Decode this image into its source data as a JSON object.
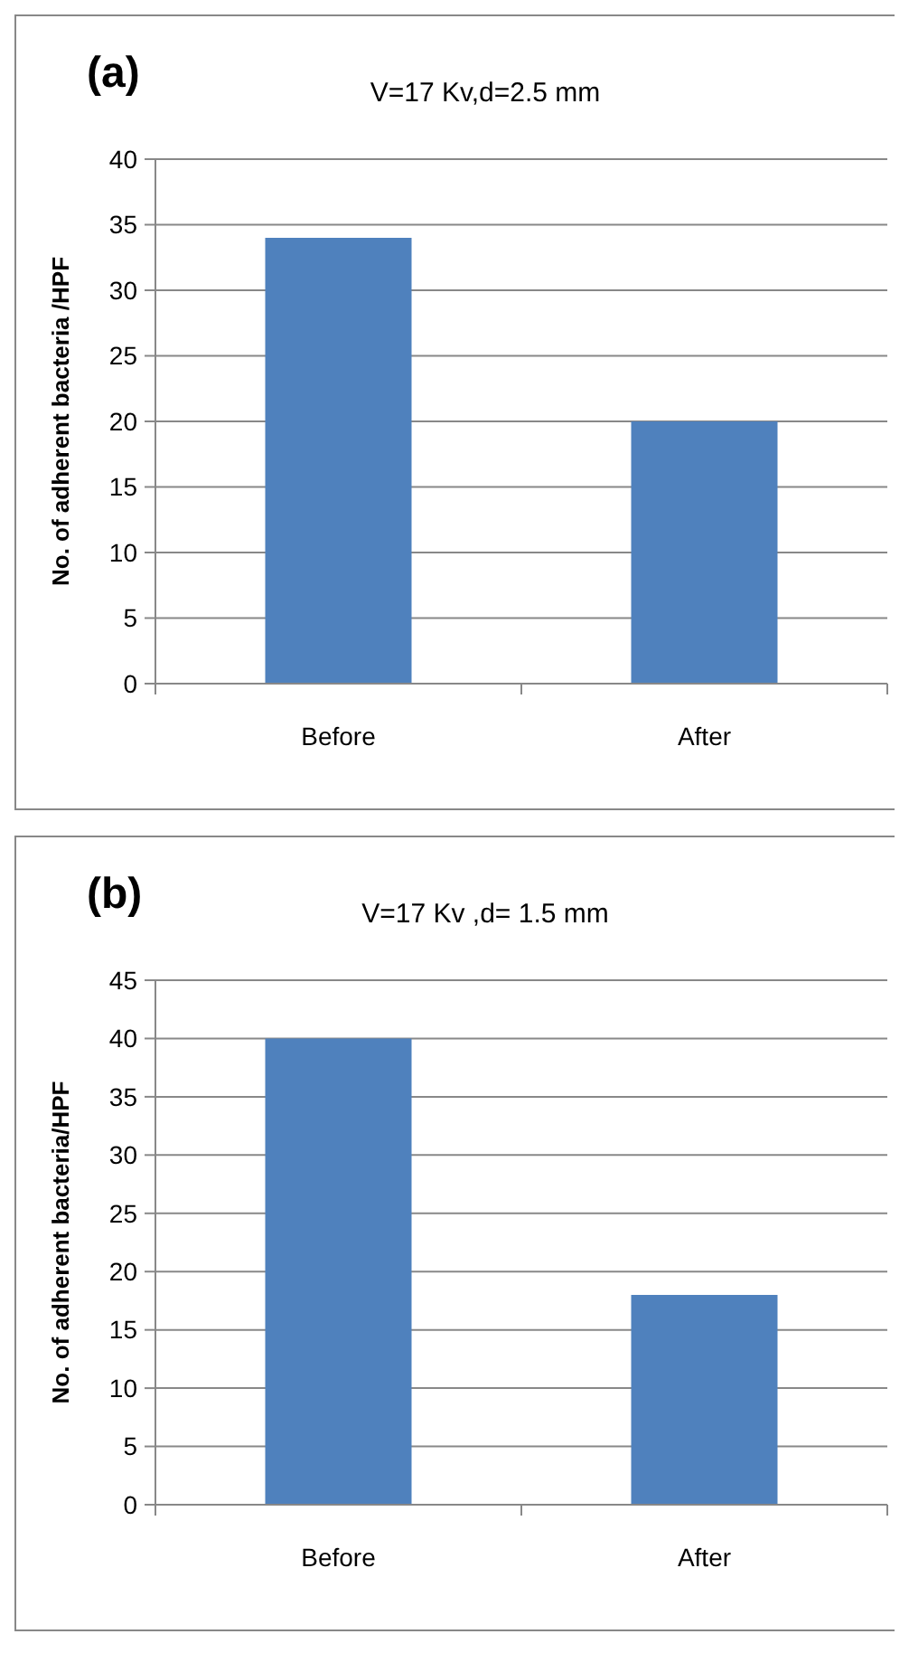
{
  "chart_data": [
    {
      "type": "bar",
      "title": "V=17 Kv,d=2.5 mm",
      "ylabel": "No. of adherent bacteria /HPF",
      "annotations": [
        "(a)"
      ],
      "categories": [
        "Before",
        "After"
      ],
      "values": [
        34,
        20
      ],
      "color": "#4f81bd",
      "ylim": [
        0,
        40
      ],
      "yticks": [
        0,
        5,
        10,
        15,
        20,
        25,
        30,
        35,
        40
      ],
      "grid": "y"
    },
    {
      "type": "bar",
      "title": "V=17 Kv ,d= 1.5 mm",
      "ylabel": "No. of adherent bacteria/HPF",
      "annotations": [
        "(b)"
      ],
      "categories": [
        "Before",
        "After"
      ],
      "values": [
        40,
        18
      ],
      "color": "#4f81bd",
      "ylim": [
        0,
        45
      ],
      "yticks": [
        0,
        5,
        10,
        15,
        20,
        25,
        30,
        35,
        40,
        45
      ],
      "grid": "y"
    }
  ]
}
